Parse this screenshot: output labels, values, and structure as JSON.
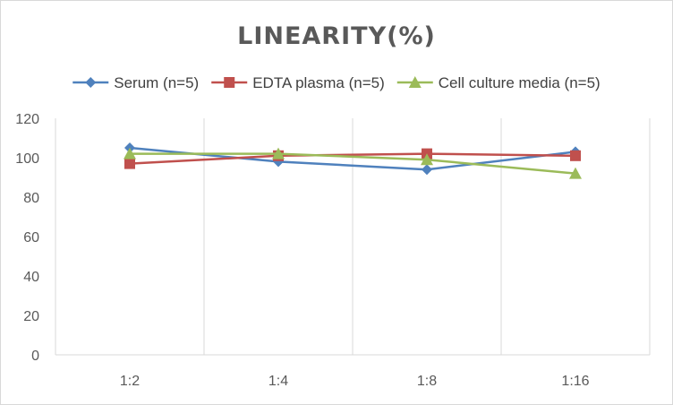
{
  "chart_data": {
    "type": "line",
    "title": "LINEARITY(%)",
    "xlabel": "",
    "ylabel": "",
    "categories": [
      "1:2",
      "1:4",
      "1:8",
      "1:16"
    ],
    "ylim": [
      0,
      120
    ],
    "yticks": [
      0,
      20,
      40,
      60,
      80,
      100,
      120
    ],
    "grid": "vertical",
    "legend_position": "top",
    "series": [
      {
        "name": "Serum (n=5)",
        "values": [
          105,
          98,
          94,
          103
        ],
        "color": "#4f81bd",
        "marker": "diamond"
      },
      {
        "name": "EDTA plasma (n=5)",
        "values": [
          97,
          101,
          102,
          101
        ],
        "color": "#c0504d",
        "marker": "square"
      },
      {
        "name": "Cell culture media (n=5)",
        "values": [
          102,
          102,
          99,
          92
        ],
        "color": "#9bbb59",
        "marker": "triangle"
      }
    ]
  }
}
